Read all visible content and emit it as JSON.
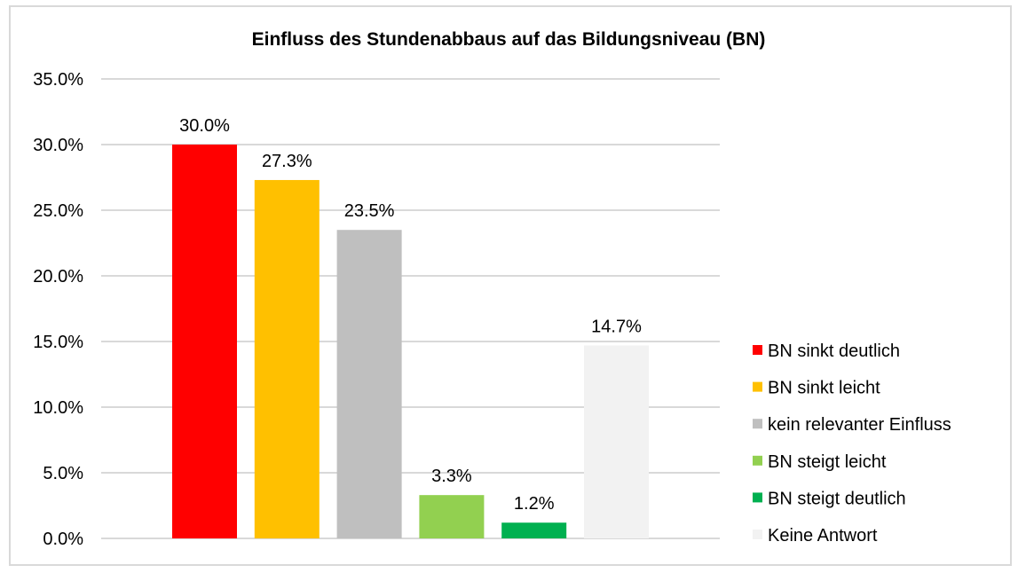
{
  "chart_data": {
    "type": "bar",
    "title": "Einfluss des Stundenabbaus auf das Bildungsniveau (BN)",
    "xlabel": "",
    "ylabel": "",
    "ylim": [
      0,
      35
    ],
    "yticks": [
      0,
      5,
      10,
      15,
      20,
      25,
      30,
      35
    ],
    "ytick_labels": [
      "0.0%",
      "5.0%",
      "10.0%",
      "15.0%",
      "20.0%",
      "25.0%",
      "30.0%",
      "35.0%"
    ],
    "grid": true,
    "legend_position": "right",
    "categories": [
      "BN sinkt deutlich",
      "BN sinkt leicht",
      "kein relevanter Einfluss",
      "BN steigt leicht",
      "BN steigt deutlich",
      "Keine Antwort"
    ],
    "values": [
      30.0,
      27.3,
      23.5,
      3.3,
      1.2,
      14.7
    ],
    "data_labels": [
      "30.0%",
      "27.3%",
      "23.5%",
      "3.3%",
      "1.2%",
      "14.7%"
    ],
    "colors": [
      "#ff0000",
      "#ffc000",
      "#bfbfbf",
      "#92d050",
      "#00b050",
      "#f2f2f2"
    ]
  }
}
